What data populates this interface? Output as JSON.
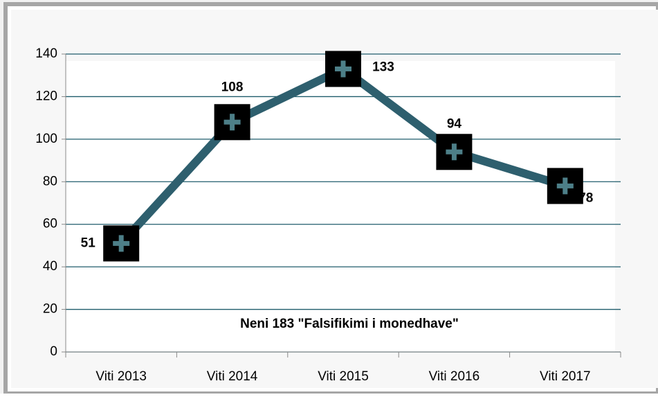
{
  "chart_data": {
    "type": "line",
    "annotation": "Neni  183 \"Falsifikimi i monedhave\"",
    "categories": [
      "Viti 2013",
      "Viti 2014",
      "Viti 2015",
      "Viti 2016",
      "Viti 2017"
    ],
    "series": [
      {
        "name": "Neni 183",
        "color": "#2e5f6e",
        "values": [
          51,
          108,
          133,
          94,
          78
        ]
      }
    ],
    "ylim": [
      0,
      140
    ],
    "yticks": [
      0,
      20,
      40,
      60,
      80,
      100,
      120,
      140
    ],
    "grid": true
  }
}
